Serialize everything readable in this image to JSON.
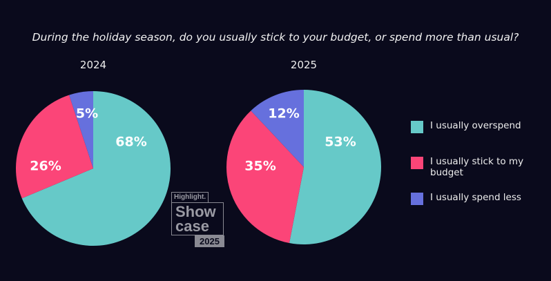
{
  "chart_data": [
    {
      "type": "pie",
      "title": "2024",
      "categories": [
        "I usually overspend",
        "I usually stick to my budget",
        "I usually spend less"
      ],
      "values": [
        68,
        26,
        5
      ],
      "labels": [
        "68%",
        "26%",
        "5%"
      ],
      "colors": [
        "#66c9c8",
        "#fb4578",
        "#6670dd"
      ]
    },
    {
      "type": "pie",
      "title": "2025",
      "categories": [
        "I usually overspend",
        "I usually stick to my budget",
        "I usually spend less"
      ],
      "values": [
        53,
        35,
        12
      ],
      "labels": [
        "53%",
        "35%",
        "12%"
      ],
      "colors": [
        "#66c9c8",
        "#fb4578",
        "#6670dd"
      ]
    }
  ],
  "title": "During the holiday season, do you usually stick to your budget, or spend more than usual?",
  "legend": {
    "placement": "right",
    "items": [
      {
        "label": "I usually overspend",
        "color": "#66c9c8"
      },
      {
        "label": "I usually stick to my budget",
        "color": "#fb4578"
      },
      {
        "label": "I usually spend less",
        "color": "#6670dd"
      }
    ]
  },
  "logo": {
    "brand": "Highlight.",
    "line1": "Show",
    "line2": "case",
    "year": "2025"
  }
}
